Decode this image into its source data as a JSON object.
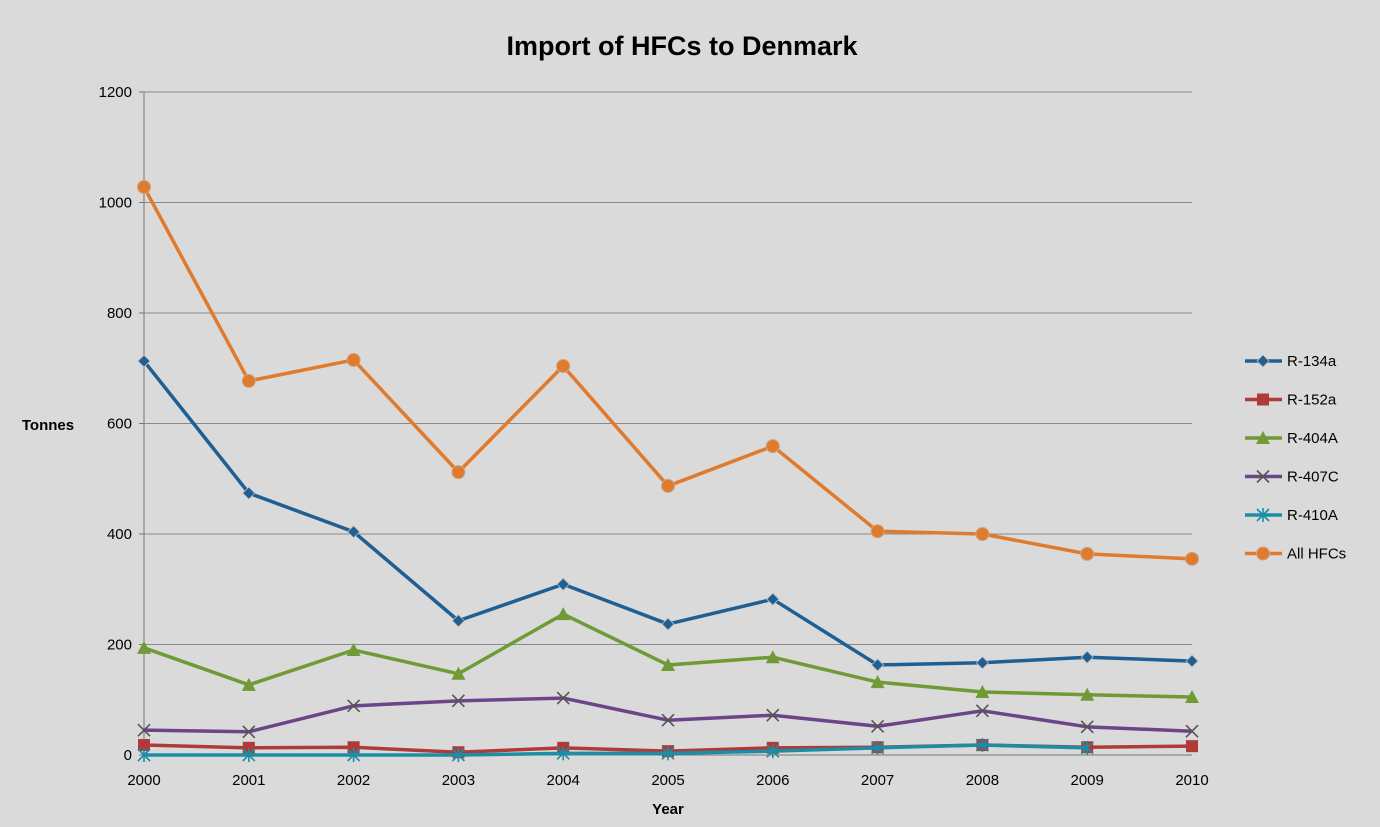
{
  "chart_data": {
    "type": "line",
    "title": "Import of HFCs to Denmark",
    "xlabel": "Year",
    "ylabel": "Tonnes",
    "x": [
      2000,
      2001,
      2002,
      2003,
      2004,
      2005,
      2006,
      2007,
      2008,
      2009,
      2010
    ],
    "ylim": [
      0,
      1200
    ],
    "yticks": [
      0,
      200,
      400,
      600,
      800,
      1000,
      1200
    ],
    "grid": "horizontal",
    "legend_position": "right",
    "series": [
      {
        "name": "R-134a",
        "color": "#1f5f93",
        "marker": "diamond",
        "values": [
          713,
          474,
          404,
          243,
          309,
          237,
          282,
          163,
          167,
          177,
          170
        ]
      },
      {
        "name": "R-152a",
        "color": "#b03a37",
        "marker": "square",
        "values": [
          18,
          13,
          14,
          5,
          13,
          7,
          13,
          14,
          18,
          14,
          16
        ]
      },
      {
        "name": "R-404A",
        "color": "#6f9a35",
        "marker": "triangle",
        "values": [
          194,
          127,
          190,
          147,
          255,
          163,
          177,
          132,
          114,
          109,
          105
        ]
      },
      {
        "name": "R-407C",
        "color": "#6b4587",
        "marker": "x",
        "values": [
          45,
          42,
          89,
          98,
          103,
          63,
          72,
          52,
          80,
          51,
          43
        ]
      },
      {
        "name": "R-410A",
        "color": "#1a8ea6",
        "marker": "star",
        "values": [
          0,
          0,
          0,
          0,
          3,
          3,
          7,
          13,
          18,
          13,
          null
        ]
      },
      {
        "name": "All HFCs",
        "color": "#e07a2c",
        "marker": "circle",
        "values": [
          1028,
          677,
          715,
          512,
          704,
          487,
          559,
          405,
          400,
          364,
          355
        ]
      }
    ]
  }
}
